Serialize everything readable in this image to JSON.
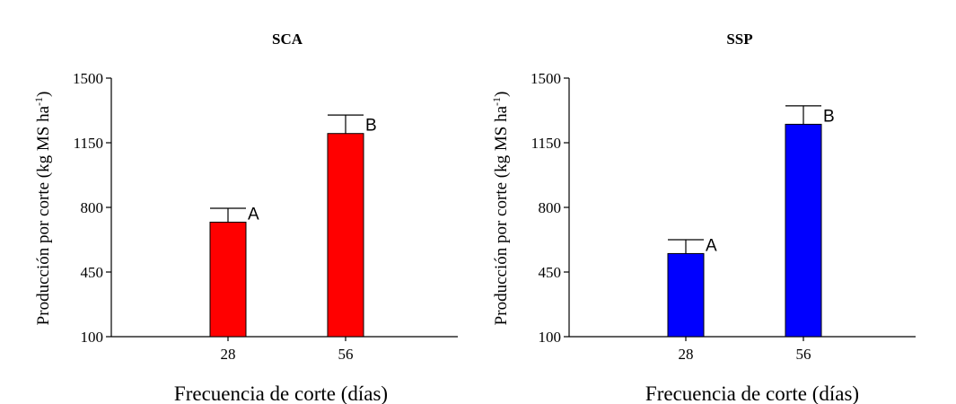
{
  "chart_data": [
    {
      "type": "bar",
      "title": "SCA",
      "xlabel": "Frecuencia de corte (días)",
      "ylabel": "Producción por corte (kg MS ha",
      "ylabel_sup": "-1",
      "ylabel_end": ")",
      "categories": [
        "28",
        "56"
      ],
      "values": [
        720,
        1200
      ],
      "errors": [
        75,
        100
      ],
      "significance": [
        "A",
        "B"
      ],
      "ylim": [
        100,
        1500
      ],
      "yticks": [
        100,
        450,
        800,
        1150,
        1500
      ],
      "bar_color": "#ff0000",
      "grid": false
    },
    {
      "type": "bar",
      "title": "SSP",
      "xlabel": "Frecuencia de corte (días)",
      "ylabel": "Producción por corte (kg MS ha",
      "ylabel_sup": "-1",
      "ylabel_end": ")",
      "categories": [
        "28",
        "56"
      ],
      "values": [
        550,
        1250
      ],
      "errors": [
        75,
        100
      ],
      "significance": [
        "A",
        "B"
      ],
      "ylim": [
        100,
        1500
      ],
      "yticks": [
        100,
        450,
        800,
        1150,
        1500
      ],
      "bar_color": "#0000ff",
      "grid": false
    }
  ]
}
